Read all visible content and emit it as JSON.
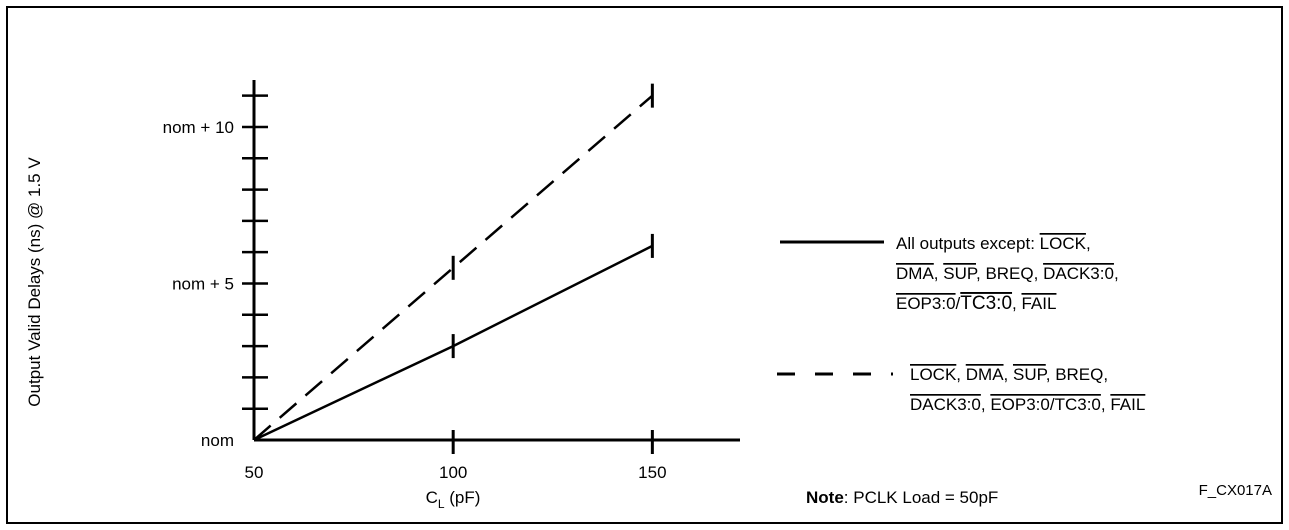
{
  "chart_data": {
    "type": "line",
    "title": "",
    "xlabel": {
      "main": "C",
      "sub": "L",
      "rest": " (pF)"
    },
    "ylabel": "Output Valid Delays (ns) @ 1.5 V",
    "x_ticks": [
      "50",
      "100",
      "150"
    ],
    "y_ticks": [
      "nom",
      "nom + 5",
      "nom + 10"
    ],
    "x_tick_values": [
      50,
      100,
      150
    ],
    "y_tick_values": [
      0,
      5,
      10
    ],
    "xlim": [
      50,
      172
    ],
    "ylim": [
      0,
      11.5
    ],
    "y_minor_step": 1,
    "series": [
      {
        "style": "solid",
        "x": [
          50,
          100,
          150
        ],
        "y": [
          0,
          3,
          6.2
        ]
      },
      {
        "style": "dashed",
        "x": [
          50,
          100,
          150
        ],
        "y": [
          0,
          5.5,
          11
        ]
      }
    ],
    "legend": {
      "placement": "right",
      "solid": [
        [
          {
            "t": "All outputs except: "
          },
          {
            "t": "LOCK",
            "ol": true
          },
          {
            "t": ","
          }
        ],
        [
          {
            "t": "DMA",
            "ol": true
          },
          {
            "t": ", "
          },
          {
            "t": "SUP",
            "ol": true
          },
          {
            "t": ", BREQ, "
          },
          {
            "t": "DACK3:0",
            "ol": true
          },
          {
            "t": ","
          }
        ],
        [
          {
            "t": "EOP3:0",
            "ol": true
          },
          {
            "t": "/"
          },
          {
            "t": "TC3:0",
            "ol": true,
            "big": true
          },
          {
            "t": ", "
          },
          {
            "t": "FAIL",
            "ol": true
          }
        ]
      ],
      "dashed": [
        [
          {
            "t": "LOCK",
            "ol": true
          },
          {
            "t": ", "
          },
          {
            "t": "DMA",
            "ol": true
          },
          {
            "t": ", "
          },
          {
            "t": "SUP",
            "ol": true
          },
          {
            "t": ", BREQ,"
          }
        ],
        [
          {
            "t": "DACK3:0",
            "ol": true
          },
          {
            "t": ", "
          },
          {
            "t": "EOP3:0/TC3:0",
            "ol": true
          },
          {
            "t": ", "
          },
          {
            "t": "FAIL",
            "ol": true
          }
        ]
      ]
    },
    "note": {
      "bold": "Note",
      "rest": ": PCLK Load = 50pF"
    },
    "figure_id": "F_CX017A"
  }
}
